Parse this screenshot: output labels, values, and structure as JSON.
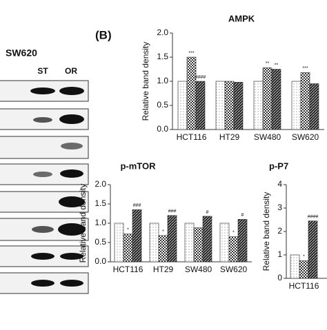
{
  "panel_label": "(B)",
  "blot": {
    "title": "SW620",
    "lanes": [
      "ST",
      "OR"
    ]
  },
  "chart_data": [
    {
      "type": "bar",
      "title": "AMPK",
      "y_label": "Relative band density",
      "categories": [
        "HCT116",
        "HT29",
        "SW480",
        "SW620"
      ],
      "series": [
        {
          "color": "#ffffff",
          "pattern": "dots",
          "values": [
            1.0,
            1.0,
            1.0,
            1.0
          ],
          "annotations": [
            null,
            null,
            null,
            null
          ]
        },
        {
          "color": "#555555",
          "pattern": "checker",
          "values": [
            1.5,
            1.0,
            1.28,
            1.18
          ],
          "annotations": [
            "***",
            null,
            "**",
            "***"
          ]
        },
        {
          "color": "#222222",
          "pattern": "hatch",
          "values": [
            1.0,
            0.98,
            1.25,
            0.95
          ],
          "annotations": [
            "####",
            null,
            "**",
            null
          ]
        }
      ],
      "ylim": [
        0,
        2
      ],
      "yticks": [
        {
          "value": 0,
          "label": "0.0"
        },
        {
          "value": 0.5,
          "label": "0.5"
        },
        {
          "value": 1,
          "label": "1.0"
        },
        {
          "value": 1.5,
          "label": "1.5"
        },
        {
          "value": 2,
          "label": "2.0"
        }
      ]
    },
    {
      "type": "bar",
      "title": "p-mTOR",
      "y_label": "Relative band density",
      "categories": [
        "HCT116",
        "HT29",
        "SW480",
        "SW620"
      ],
      "series": [
        {
          "color": "#ffffff",
          "pattern": "dots",
          "values": [
            1.0,
            1.0,
            1.0,
            1.0
          ],
          "annotations": [
            null,
            null,
            null,
            null
          ]
        },
        {
          "color": "#555555",
          "pattern": "checker",
          "values": [
            0.72,
            0.68,
            0.88,
            0.65
          ],
          "annotations": [
            "*",
            "*",
            null,
            "*"
          ]
        },
        {
          "color": "#222222",
          "pattern": "hatch",
          "values": [
            1.35,
            1.2,
            1.18,
            1.1
          ],
          "annotations": [
            "###",
            "###",
            "#",
            "#"
          ]
        }
      ],
      "ylim": [
        0,
        2
      ],
      "yticks": [
        {
          "value": 0,
          "label": "0.0"
        },
        {
          "value": 0.5,
          "label": "0.5"
        },
        {
          "value": 1,
          "label": "1.0"
        },
        {
          "value": 1.5,
          "label": "1.5"
        },
        {
          "value": 2,
          "label": "2.0"
        }
      ]
    },
    {
      "type": "bar",
      "title": "p-P7",
      "y_label": "Relative band density",
      "categories": [
        "HCT116"
      ],
      "series": [
        {
          "color": "#ffffff",
          "pattern": "dots",
          "values": [
            1.0
          ],
          "annotations": [
            null
          ]
        },
        {
          "color": "#555555",
          "pattern": "checker",
          "values": [
            0.75
          ],
          "annotations": [
            "*"
          ]
        },
        {
          "color": "#222222",
          "pattern": "hatch",
          "values": [
            2.45
          ],
          "annotations": [
            "####"
          ]
        }
      ],
      "ylim": [
        0,
        4
      ],
      "yticks": [
        0,
        1,
        2,
        3,
        4
      ]
    }
  ]
}
